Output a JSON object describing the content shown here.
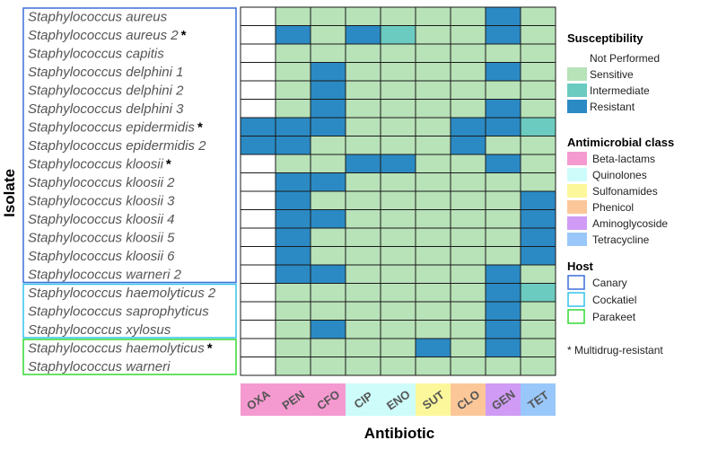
{
  "chart_data": {
    "type": "heatmap",
    "xlabel": "Antibiotic",
    "ylabel": "Isolate",
    "antibiotics": [
      {
        "code": "OXA",
        "class": "Beta-lactams"
      },
      {
        "code": "PEN",
        "class": "Beta-lactams"
      },
      {
        "code": "CFO",
        "class": "Beta-lactams"
      },
      {
        "code": "CIP",
        "class": "Quinolones"
      },
      {
        "code": "ENO",
        "class": "Quinolones"
      },
      {
        "code": "SUT",
        "class": "Sulfonamides"
      },
      {
        "code": "CLO",
        "class": "Phenicol"
      },
      {
        "code": "GEN",
        "class": "Aminoglycoside"
      },
      {
        "code": "TET",
        "class": "Tetracycline"
      }
    ],
    "isolates": [
      {
        "name": "Staphylococcus aureus",
        "mdr": false,
        "host": "Canary",
        "values": [
          "Not Performed",
          "Sensitive",
          "Sensitive",
          "Sensitive",
          "Sensitive",
          "Sensitive",
          "Sensitive",
          "Resistant",
          "Sensitive"
        ]
      },
      {
        "name": "Staphylococcus aureus 2",
        "mdr": true,
        "host": "Canary",
        "values": [
          "Not Performed",
          "Resistant",
          "Sensitive",
          "Resistant",
          "Intermediate",
          "Sensitive",
          "Sensitive",
          "Resistant",
          "Sensitive"
        ]
      },
      {
        "name": "Staphylococcus capitis",
        "mdr": false,
        "host": "Canary",
        "values": [
          "Not Performed",
          "Sensitive",
          "Sensitive",
          "Sensitive",
          "Sensitive",
          "Sensitive",
          "Sensitive",
          "Sensitive",
          "Sensitive"
        ]
      },
      {
        "name": "Staphylococcus delphini 1",
        "mdr": false,
        "host": "Canary",
        "values": [
          "Not Performed",
          "Sensitive",
          "Resistant",
          "Sensitive",
          "Sensitive",
          "Sensitive",
          "Sensitive",
          "Resistant",
          "Sensitive"
        ]
      },
      {
        "name": "Staphylococcus delphini 2",
        "mdr": false,
        "host": "Canary",
        "values": [
          "Not Performed",
          "Sensitive",
          "Resistant",
          "Sensitive",
          "Sensitive",
          "Sensitive",
          "Sensitive",
          "Sensitive",
          "Sensitive"
        ]
      },
      {
        "name": "Staphylococcus delphini 3",
        "mdr": false,
        "host": "Canary",
        "values": [
          "Not Performed",
          "Sensitive",
          "Resistant",
          "Sensitive",
          "Sensitive",
          "Sensitive",
          "Sensitive",
          "Resistant",
          "Sensitive"
        ]
      },
      {
        "name": "Staphylococcus epidermidis",
        "mdr": true,
        "host": "Canary",
        "values": [
          "Resistant",
          "Resistant",
          "Resistant",
          "Sensitive",
          "Sensitive",
          "Sensitive",
          "Resistant",
          "Resistant",
          "Intermediate"
        ]
      },
      {
        "name": "Staphylococcus epidermidis 2",
        "mdr": false,
        "host": "Canary",
        "values": [
          "Resistant",
          "Resistant",
          "Sensitive",
          "Sensitive",
          "Sensitive",
          "Sensitive",
          "Resistant",
          "Sensitive",
          "Sensitive"
        ]
      },
      {
        "name": "Staphylococcus kloosii",
        "mdr": true,
        "host": "Canary",
        "values": [
          "Not Performed",
          "Sensitive",
          "Sensitive",
          "Resistant",
          "Resistant",
          "Sensitive",
          "Sensitive",
          "Resistant",
          "Sensitive"
        ]
      },
      {
        "name": "Staphylococcus kloosii 2",
        "mdr": false,
        "host": "Canary",
        "values": [
          "Not Performed",
          "Resistant",
          "Resistant",
          "Sensitive",
          "Sensitive",
          "Sensitive",
          "Sensitive",
          "Sensitive",
          "Sensitive"
        ]
      },
      {
        "name": "Staphylococcus kloosii 3",
        "mdr": false,
        "host": "Canary",
        "values": [
          "Not Performed",
          "Resistant",
          "Sensitive",
          "Sensitive",
          "Sensitive",
          "Sensitive",
          "Sensitive",
          "Sensitive",
          "Resistant"
        ]
      },
      {
        "name": "Staphylococcus kloosii 4",
        "mdr": false,
        "host": "Canary",
        "values": [
          "Not Performed",
          "Resistant",
          "Resistant",
          "Sensitive",
          "Sensitive",
          "Sensitive",
          "Sensitive",
          "Sensitive",
          "Resistant"
        ]
      },
      {
        "name": "Staphylococcus kloosii 5",
        "mdr": false,
        "host": "Canary",
        "values": [
          "Not Performed",
          "Resistant",
          "Sensitive",
          "Sensitive",
          "Sensitive",
          "Sensitive",
          "Sensitive",
          "Sensitive",
          "Resistant"
        ]
      },
      {
        "name": "Staphylococcus kloosii 6",
        "mdr": false,
        "host": "Canary",
        "values": [
          "Not Performed",
          "Resistant",
          "Sensitive",
          "Sensitive",
          "Sensitive",
          "Sensitive",
          "Sensitive",
          "Sensitive",
          "Resistant"
        ]
      },
      {
        "name": "Staphylococcus warneri 2",
        "mdr": false,
        "host": "Canary",
        "values": [
          "Not Performed",
          "Resistant",
          "Resistant",
          "Sensitive",
          "Sensitive",
          "Sensitive",
          "Sensitive",
          "Resistant",
          "Sensitive"
        ]
      },
      {
        "name": "Staphylococcus haemolyticus 2",
        "mdr": false,
        "host": "Cockatiel",
        "values": [
          "Not Performed",
          "Sensitive",
          "Sensitive",
          "Sensitive",
          "Sensitive",
          "Sensitive",
          "Sensitive",
          "Resistant",
          "Intermediate"
        ]
      },
      {
        "name": "Staphylococcus saprophyticus",
        "mdr": false,
        "host": "Cockatiel",
        "values": [
          "Not Performed",
          "Sensitive",
          "Sensitive",
          "Sensitive",
          "Sensitive",
          "Sensitive",
          "Sensitive",
          "Resistant",
          "Sensitive"
        ]
      },
      {
        "name": "Staphylococcus  xylosus",
        "mdr": false,
        "host": "Cockatiel",
        "values": [
          "Not Performed",
          "Sensitive",
          "Resistant",
          "Sensitive",
          "Sensitive",
          "Sensitive",
          "Sensitive",
          "Resistant",
          "Sensitive"
        ]
      },
      {
        "name": "Staphylococcus  haemolyticus",
        "mdr": true,
        "host": "Parakeet",
        "values": [
          "Not Performed",
          "Sensitive",
          "Sensitive",
          "Sensitive",
          "Sensitive",
          "Resistant",
          "Sensitive",
          "Resistant",
          "Sensitive"
        ]
      },
      {
        "name": "Staphylococcus warneri",
        "mdr": false,
        "host": "Parakeet",
        "values": [
          "Not Performed",
          "Sensitive",
          "Sensitive",
          "Sensitive",
          "Sensitive",
          "Sensitive",
          "Sensitive",
          "Sensitive",
          "Sensitive"
        ]
      }
    ]
  },
  "legend": {
    "susceptibility": {
      "title": "Susceptibility",
      "items": [
        {
          "label": "Not Performed",
          "color": "#ffffff"
        },
        {
          "label": "Sensitive",
          "color": "#b8e2b8"
        },
        {
          "label": "Intermediate",
          "color": "#6ccbc0"
        },
        {
          "label": "Resistant",
          "color": "#2b8ac4"
        }
      ]
    },
    "antimicrobial_class": {
      "title": "Antimicrobial class",
      "items": [
        {
          "label": "Beta-lactams",
          "color": "#f59ad0"
        },
        {
          "label": "Quinolones",
          "color": "#cdfcfa"
        },
        {
          "label": "Sulfonamides",
          "color": "#fcf79a"
        },
        {
          "label": "Phenicol",
          "color": "#fbc799"
        },
        {
          "label": "Aminoglycoside",
          "color": "#cf9bf5"
        },
        {
          "label": "Tetracycline",
          "color": "#99c7fa"
        }
      ]
    },
    "host": {
      "title": "Host",
      "items": [
        {
          "label": "Canary",
          "color": "#3b6fd8"
        },
        {
          "label": "Cockatiel",
          "color": "#35c3e8"
        },
        {
          "label": "Parakeet",
          "color": "#34d834"
        }
      ]
    },
    "note": "* Multidrug-resistant",
    "mdr_marker": "*"
  }
}
